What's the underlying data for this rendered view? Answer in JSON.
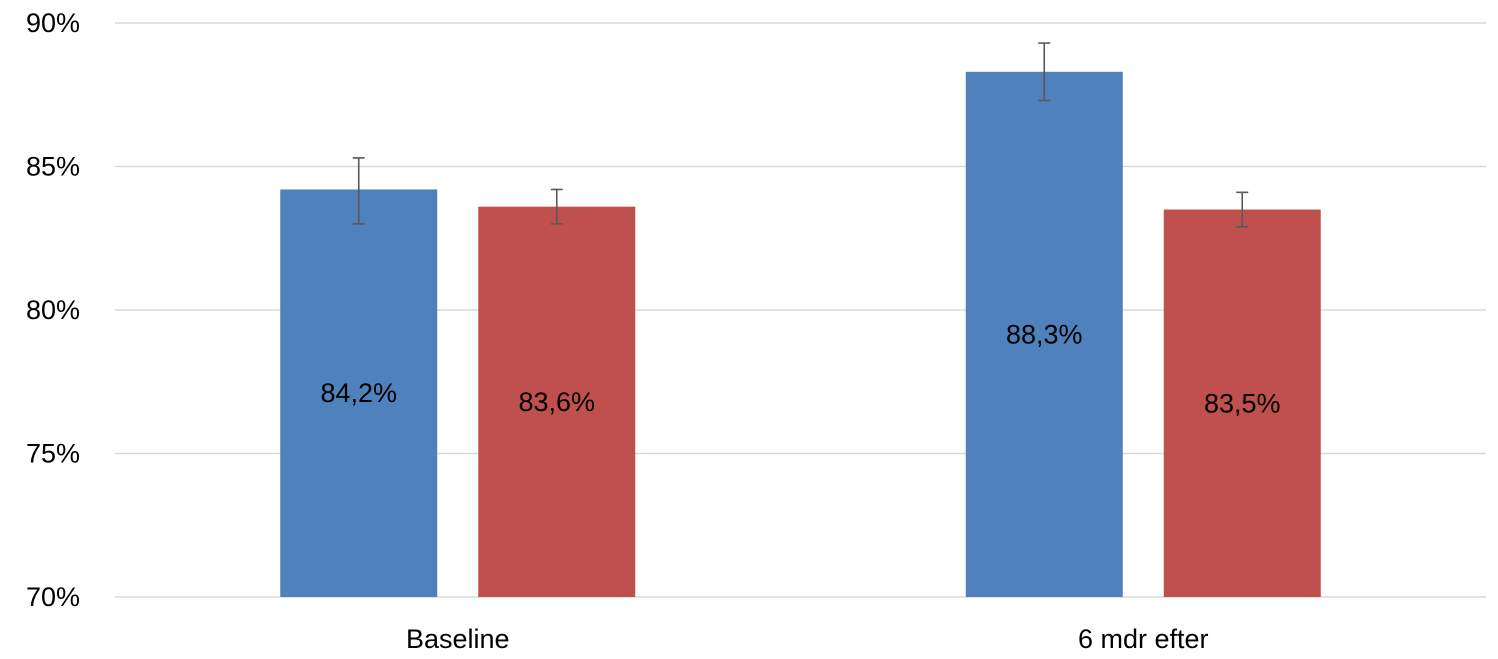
{
  "chart_data": {
    "type": "bar",
    "categories": [
      "Baseline",
      "6 mdr efter"
    ],
    "series": [
      {
        "color": "#4f81bd",
        "values": [
          84.2,
          88.3
        ],
        "error": [
          [
            83.0,
            85.3
          ],
          [
            87.3,
            89.3
          ]
        ],
        "data_labels": [
          "84,2%",
          "88,3%"
        ]
      },
      {
        "color": "#c0504d",
        "values": [
          83.6,
          83.5
        ],
        "error": [
          [
            83.0,
            84.2
          ],
          [
            82.9,
            84.1
          ]
        ],
        "data_labels": [
          "83,6%",
          "83,5%"
        ]
      }
    ],
    "ylim": [
      70,
      90
    ],
    "yticks": [
      70,
      75,
      80,
      85,
      90
    ],
    "ytick_labels": [
      "70%",
      "75%",
      "80%",
      "85%",
      "90%"
    ],
    "grid": true,
    "legend": "none",
    "colors": {
      "gridline": "#d9d9d9",
      "errorbar": "#595959"
    }
  }
}
